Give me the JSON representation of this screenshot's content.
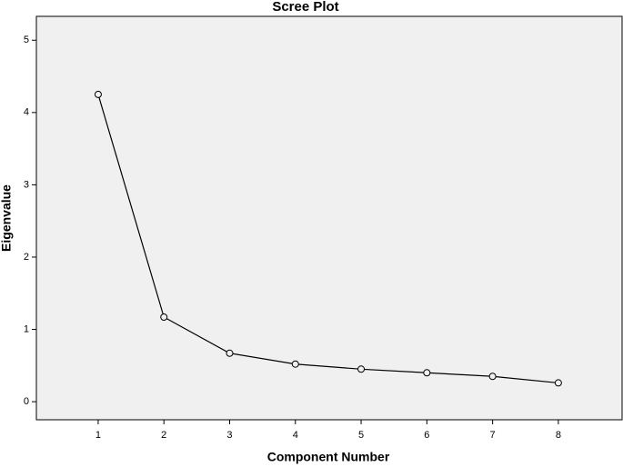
{
  "chart_data": {
    "type": "line",
    "title": "Scree Plot",
    "x_label": "Component Number",
    "y_label": "Eigenvalue",
    "x": [
      1,
      2,
      3,
      4,
      5,
      6,
      7,
      8
    ],
    "series": [
      {
        "color": "#000000",
        "values": [
          4.25,
          1.17,
          0.67,
          0.52,
          0.45,
          0.4,
          0.35,
          0.26
        ]
      }
    ],
    "xlim": [
      0.06,
      8.97
    ],
    "xticks": [
      1,
      2,
      3,
      4,
      5,
      6,
      7,
      8
    ],
    "ylim": [
      -0.25,
      5.33
    ],
    "yticks": [
      0,
      1,
      2,
      3,
      4,
      5
    ],
    "grid": false,
    "background": "#f0f0f0"
  }
}
